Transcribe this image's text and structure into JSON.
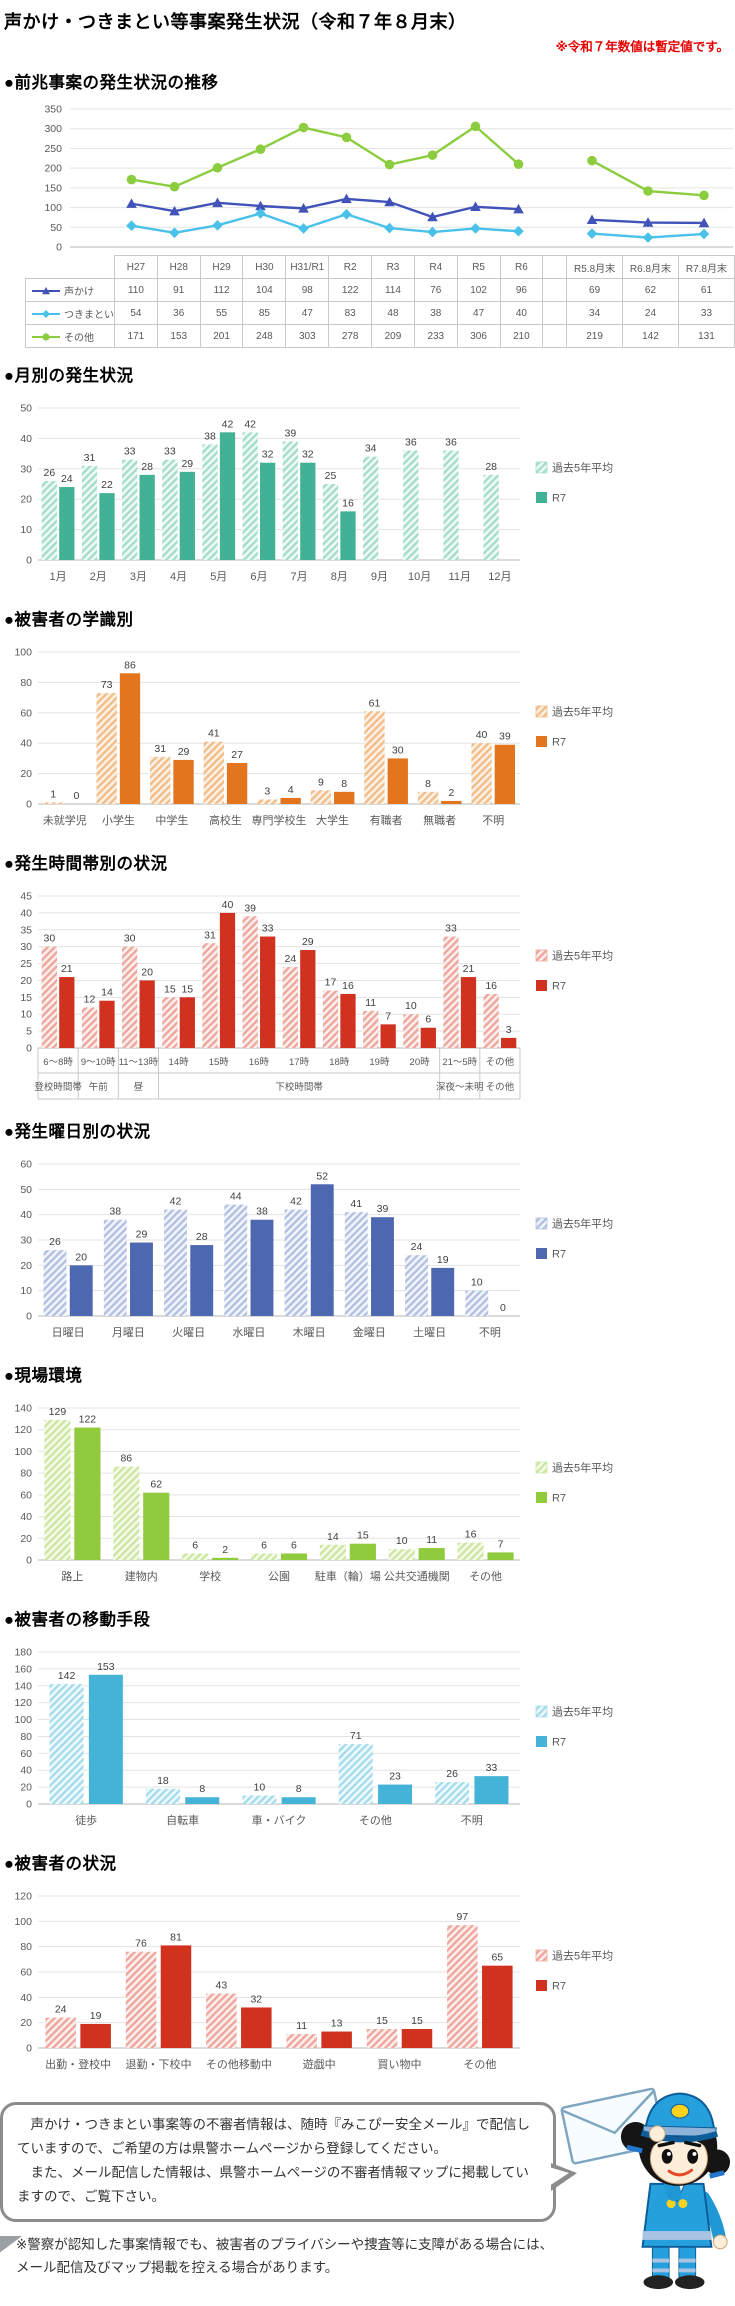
{
  "header": {
    "title": "声かけ・つきまとい等事案発生状況（令和７年８月末）",
    "note": "※令和７年数値は暫定値です。"
  },
  "chart_data": [
    {
      "type": "line",
      "heading": "●前兆事案の発生状況の推移",
      "categories": [
        "H27",
        "H28",
        "H29",
        "H30",
        "H31/R1",
        "R2",
        "R3",
        "R4",
        "R5",
        "R6",
        "",
        "R5.8月末",
        "R6.8月末",
        "R7.8月末"
      ],
      "ylim": [
        0,
        350
      ],
      "ytick": 50,
      "grid": true,
      "legend_position": "table-left",
      "series": [
        {
          "name": "声かけ",
          "color": "#4152b8",
          "marker": "triangle",
          "values": [
            110,
            91,
            112,
            104,
            98,
            122,
            114,
            76,
            102,
            96,
            null,
            69,
            62,
            61
          ]
        },
        {
          "name": "つきまとい",
          "color": "#49c1e8",
          "marker": "diamond",
          "values": [
            54,
            36,
            55,
            85,
            47,
            83,
            48,
            38,
            47,
            40,
            null,
            34,
            24,
            33
          ]
        },
        {
          "name": "その他",
          "color": "#8ccc3f",
          "marker": "circle",
          "values": [
            171,
            153,
            201,
            248,
            303,
            278,
            209,
            233,
            306,
            210,
            null,
            219,
            142,
            131
          ]
        }
      ]
    },
    {
      "type": "bar",
      "heading": "●月別の発生状況",
      "categories": [
        "1月",
        "2月",
        "3月",
        "4月",
        "5月",
        "6月",
        "7月",
        "8月",
        "9月",
        "10月",
        "11月",
        "12月"
      ],
      "ylim": [
        0,
        50
      ],
      "ytick": 10,
      "grid": true,
      "legend_position": "right",
      "colors": {
        "solid": "#42b195",
        "hatch_line": "#a5ddcd",
        "hatch_bg": "#effaf6"
      },
      "series": [
        {
          "name": "過去5年平均",
          "values": [
            26,
            31,
            33,
            33,
            38,
            42,
            39,
            25,
            34,
            36,
            36,
            28
          ]
        },
        {
          "name": "R7",
          "values": [
            24,
            22,
            28,
            29,
            42,
            32,
            32,
            16,
            null,
            null,
            null,
            null
          ]
        }
      ]
    },
    {
      "type": "bar",
      "heading": "●被害者の学識別",
      "categories": [
        "未就学児",
        "小学生",
        "中学生",
        "高校生",
        "専門学校生",
        "大学生",
        "有職者",
        "無職者",
        "不明"
      ],
      "ylim": [
        0,
        100
      ],
      "ytick": 20,
      "grid": true,
      "legend_position": "right",
      "colors": {
        "solid": "#e2751d",
        "hatch_line": "#f2bd8a",
        "hatch_bg": "#fdf1e3"
      },
      "series": [
        {
          "name": "過去5年平均",
          "values": [
            1,
            73,
            31,
            41,
            3,
            9,
            61,
            8,
            40
          ]
        },
        {
          "name": "R7",
          "values": [
            0,
            86,
            29,
            27,
            4,
            8,
            30,
            2,
            39
          ]
        }
      ]
    },
    {
      "type": "bar",
      "heading": "●発生時間帯別の状況",
      "categories": [
        "6～8時",
        "9～10時",
        "11～13時",
        "14時",
        "15時",
        "16時",
        "17時",
        "18時",
        "19時",
        "20時",
        "21～5時",
        "その他"
      ],
      "group_labels": [
        {
          "label": "登校時間帯",
          "span": 1
        },
        {
          "label": "午前",
          "span": 1
        },
        {
          "label": "昼",
          "span": 1
        },
        {
          "label": "下校時間帯",
          "span": 7
        },
        {
          "label": "深夜～未明",
          "span": 1
        },
        {
          "label": "その他",
          "span": 1
        }
      ],
      "ylim": [
        0,
        45
      ],
      "ytick": 5,
      "grid": true,
      "legend_position": "right",
      "colors": {
        "solid": "#d0321f",
        "hatch_line": "#eda79d",
        "hatch_bg": "#fbeeec"
      },
      "series": [
        {
          "name": "過去5年平均",
          "values": [
            30,
            12,
            30,
            15,
            31,
            39,
            24,
            17,
            11,
            10,
            33,
            16
          ]
        },
        {
          "name": "R7",
          "values": [
            21,
            14,
            20,
            15,
            40,
            33,
            29,
            16,
            7,
            6,
            21,
            3
          ]
        }
      ]
    },
    {
      "type": "bar",
      "heading": "●発生曜日別の状況",
      "categories": [
        "日曜日",
        "月曜日",
        "火曜日",
        "水曜日",
        "木曜日",
        "金曜日",
        "土曜日",
        "不明"
      ],
      "ylim": [
        0,
        60
      ],
      "ytick": 10,
      "grid": true,
      "legend_position": "right",
      "colors": {
        "solid": "#4d68b0",
        "hatch_line": "#b3c0e2",
        "hatch_bg": "#f1f4fb"
      },
      "series": [
        {
          "name": "過去5年平均",
          "values": [
            26,
            38,
            42,
            44,
            42,
            41,
            24,
            10
          ]
        },
        {
          "name": "R7",
          "values": [
            20,
            29,
            28,
            38,
            52,
            39,
            19,
            0
          ]
        }
      ]
    },
    {
      "type": "bar",
      "heading": "●現場環境",
      "categories": [
        "路上",
        "建物内",
        "学校",
        "公園",
        "駐車（輪）場",
        "公共交通機関",
        "その他"
      ],
      "ylim": [
        0,
        140
      ],
      "ytick": 20,
      "grid": true,
      "legend_position": "right",
      "colors": {
        "solid": "#90cb3e",
        "hatch_line": "#cde6a3",
        "hatch_bg": "#f5fbe9"
      },
      "series": [
        {
          "name": "過去5年平均",
          "values": [
            129,
            86,
            6,
            6,
            14,
            10,
            16
          ]
        },
        {
          "name": "R7",
          "values": [
            122,
            62,
            2,
            6,
            15,
            11,
            7
          ]
        }
      ]
    },
    {
      "type": "bar",
      "heading": "●被害者の移動手段",
      "categories": [
        "徒歩",
        "自転車",
        "車・バイク",
        "その他",
        "不明"
      ],
      "ylim": [
        0,
        180
      ],
      "ytick": 20,
      "grid": true,
      "legend_position": "right",
      "colors": {
        "solid": "#45b3d8",
        "hatch_line": "#a6dbec",
        "hatch_bg": "#eefafd"
      },
      "series": [
        {
          "name": "過去5年平均",
          "values": [
            142,
            18,
            10,
            71,
            26
          ]
        },
        {
          "name": "R7",
          "values": [
            153,
            8,
            8,
            23,
            33
          ]
        }
      ]
    },
    {
      "type": "bar",
      "heading": "●被害者の状況",
      "categories": [
        "出勤・登校中",
        "退勤・下校中",
        "その他移動中",
        "遊戯中",
        "買い物中",
        "その他"
      ],
      "ylim": [
        0,
        120
      ],
      "ytick": 20,
      "grid": true,
      "legend_position": "right",
      "colors": {
        "solid": "#d0321f",
        "hatch_line": "#eda79d",
        "hatch_bg": "#fbeeec"
      },
      "series": [
        {
          "name": "過去5年平均",
          "values": [
            24,
            76,
            43,
            11,
            15,
            97
          ]
        },
        {
          "name": "R7",
          "values": [
            19,
            81,
            32,
            13,
            15,
            65
          ]
        }
      ]
    }
  ],
  "footer": {
    "bubble_line1": "　声かけ・つきまとい事案等の不審者情報は、随時『みこぴー安全メール』で配信していますので、ご希望の方は県警ホームページから登録してください。",
    "bubble_line2": "　また、メール配信した情報は、県警ホームページの不審者情報マップに掲載していますので、ご覧下さい。",
    "note": "※警察が認知した事案情報でも、被害者のプライバシーや捜査等に支障がある場合には、メール配信及びマップ掲載を控える場合があります。",
    "mascot": "police-mascot-with-envelope"
  }
}
